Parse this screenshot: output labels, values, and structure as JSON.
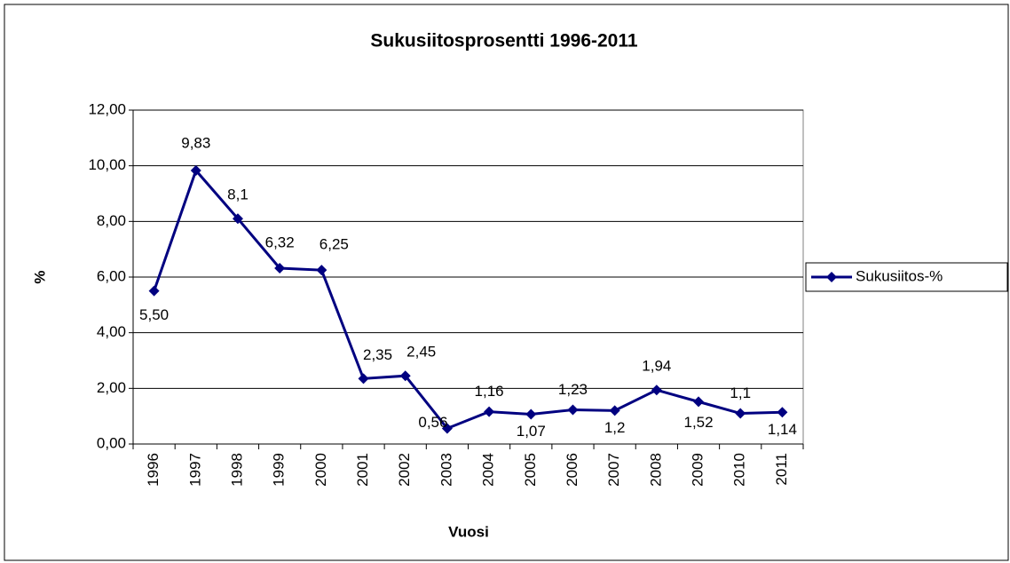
{
  "chart_data": {
    "type": "line",
    "title": "Sukusiitosprosentti 1996-2011",
    "xlabel": "Vuosi",
    "ylabel": "%",
    "categories": [
      "1996",
      "1997",
      "1998",
      "1999",
      "2000",
      "2001",
      "2002",
      "2003",
      "2004",
      "2005",
      "2006",
      "2007",
      "2008",
      "2009",
      "2010",
      "2011"
    ],
    "series": [
      {
        "name": "Sukusiitos-%",
        "color": "#000080",
        "values": [
          5.5,
          9.83,
          8.1,
          6.32,
          6.25,
          2.35,
          2.45,
          0.56,
          1.16,
          1.07,
          1.23,
          1.2,
          1.94,
          1.52,
          1.1,
          1.14
        ],
        "value_labels": [
          "5,50",
          "9,83",
          "8,1",
          "6,32",
          "6,25",
          "2,35",
          "2,45",
          "0,56",
          "1,16",
          "1,07",
          "1,23",
          "1,2",
          "1,94",
          "1,52",
          "1,1",
          "1,14"
        ]
      }
    ],
    "ylim": [
      0,
      12
    ],
    "yticks": [
      {
        "value": 0,
        "label": "0,00"
      },
      {
        "value": 2,
        "label": "2,00"
      },
      {
        "value": 4,
        "label": "4,00"
      },
      {
        "value": 6,
        "label": "6,00"
      },
      {
        "value": 8,
        "label": "8,00"
      },
      {
        "value": 10,
        "label": "10,00"
      },
      {
        "value": 12,
        "label": "12,00"
      }
    ],
    "grid": true,
    "legend": "right"
  }
}
